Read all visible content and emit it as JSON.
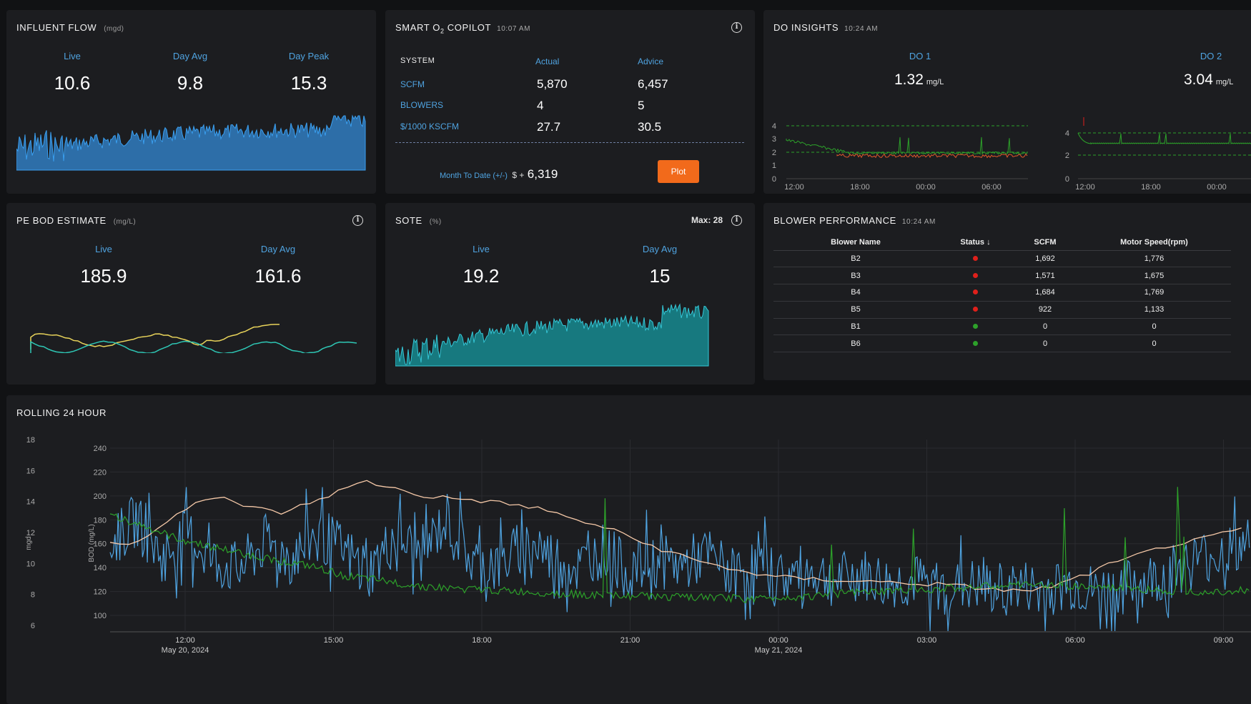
{
  "influent": {
    "title": "INFLUENT FLOW",
    "unit": "(mgd)",
    "live_label": "Live",
    "live": "10.6",
    "avg_label": "Day Avg",
    "avg": "9.8",
    "peak_label": "Day Peak",
    "peak": "15.3"
  },
  "copilot": {
    "title_pre": "SMART O",
    "title_sub": "2",
    "title_post": " COPILOT",
    "time": "10:07 AM",
    "col_system": "SYSTEM",
    "col_actual": "Actual",
    "col_advice": "Advice",
    "rows": [
      {
        "label": "SCFM",
        "actual": "5,870",
        "advice": "6,457"
      },
      {
        "label": "BLOWERS",
        "actual": "4",
        "advice": "5"
      },
      {
        "label": "$/1000 KSCFM",
        "actual": "27.7",
        "advice": "30.5"
      }
    ],
    "mtd_label": "Month To Date (+/-)",
    "mtd_prefix": "$ +",
    "mtd_value": "6,319",
    "plot_button": "Plot"
  },
  "do_insights": {
    "title": "DO INSIGHTS",
    "time": "10:24 AM",
    "do1": {
      "label": "DO 1",
      "value": "1.32",
      "unit": "mg/L",
      "yticks": [
        "4",
        "3",
        "2",
        "1",
        "0"
      ],
      "xticks": [
        "12:00",
        "18:00",
        "00:00",
        "06:00"
      ]
    },
    "do2": {
      "label": "DO 2",
      "value": "3.04",
      "unit": "mg/L",
      "yticks": [
        "4",
        "2",
        "0"
      ],
      "xticks": [
        "12:00",
        "18:00",
        "00:00"
      ]
    }
  },
  "bod": {
    "title": "PE BOD ESTIMATE",
    "unit": "(mg/L)",
    "live_label": "Live",
    "live": "185.9",
    "avg_label": "Day Avg",
    "avg": "161.6"
  },
  "sote": {
    "title": "SOTE",
    "unit": "(%)",
    "max_text": "Max: 28",
    "live_label": "Live",
    "live": "19.2",
    "avg_label": "Day Avg",
    "avg": "15"
  },
  "blower": {
    "title": "BLOWER PERFORMANCE",
    "time": "10:24 AM",
    "headers": [
      "Blower Name",
      "Status",
      "SCFM",
      "Motor Speed(rpm)"
    ],
    "rows": [
      {
        "name": "B2",
        "status": "red",
        "scfm": "1,692",
        "speed": "1,776"
      },
      {
        "name": "B3",
        "status": "red",
        "scfm": "1,571",
        "speed": "1,675"
      },
      {
        "name": "B4",
        "status": "red",
        "scfm": "1,684",
        "speed": "1,769"
      },
      {
        "name": "B5",
        "status": "red",
        "scfm": "922",
        "speed": "1,133"
      },
      {
        "name": "B1",
        "status": "green",
        "scfm": "0",
        "speed": "0"
      },
      {
        "name": "B6",
        "status": "green",
        "scfm": "0",
        "speed": "0"
      }
    ]
  },
  "colors": {
    "red": "#e0201b",
    "green": "#2da12a",
    "blue": "#4fa3e0",
    "orange": "#f26a1b"
  },
  "chart_data": {
    "type": "line",
    "title": "ROLLING 24 HOUR",
    "y1label": "mgd",
    "y1ticks": [
      "18",
      "16",
      "14",
      "12",
      "10",
      "8",
      "6"
    ],
    "y2label": "BOD (mg/L)",
    "y2ticks": [
      "240",
      "220",
      "200",
      "180",
      "160",
      "140",
      "120",
      "100"
    ],
    "xticks": [
      "12:00",
      "15:00",
      "18:00",
      "21:00",
      "00:00",
      "03:00",
      "06:00",
      "09:00"
    ],
    "xdates": [
      "May 20, 2024",
      "",
      "",
      "",
      "May 21, 2024",
      "",
      "",
      ""
    ],
    "series": [
      {
        "name": "Influent Flow",
        "axis": "mgd",
        "color": "#4fa3e0",
        "values": [
          11.2,
          12.8,
          10.4,
          11.9,
          10.1,
          9.6,
          11.4,
          10.2,
          12.1,
          10.8,
          9.5,
          11.7,
          10.6,
          12.9,
          10.1,
          9.8,
          11.3,
          10.5,
          9.7,
          10.9,
          9.4,
          10.2,
          9.8,
          10.6,
          9.3,
          9.9,
          9.1,
          9.5,
          8.9,
          9.2,
          8.7,
          8.8,
          8.4,
          8.6,
          8.2,
          8.5,
          8.3,
          8.6,
          8.1,
          8.4,
          8.8,
          9.6,
          10.3,
          10.8,
          11.2
        ]
      },
      {
        "name": "PE BOD",
        "axis": "bod",
        "color": "#f6c9a8",
        "values": [
          160,
          162,
          180,
          194,
          198,
          190,
          186,
          194,
          204,
          212,
          206,
          200,
          198,
          196,
          193,
          190,
          182,
          176,
          168,
          158,
          150,
          143,
          138,
          133,
          131,
          130,
          129,
          128,
          127,
          126,
          124,
          122,
          120,
          124,
          132,
          142,
          150,
          158,
          162,
          168,
          174
        ]
      },
      {
        "name": "SOTE",
        "axis": "mgd",
        "color": "#2da12a",
        "values": [
          13.2,
          12.4,
          11.6,
          11.1,
          10.6,
          10.2,
          9.8,
          9.2,
          8.9,
          8.6,
          8.4,
          8.3,
          8.2,
          8.1,
          8.0,
          7.9,
          7.9,
          7.8,
          7.8,
          7.7,
          7.8,
          7.9,
          8.1,
          8.2,
          8.3,
          8.4,
          8.5,
          8.6,
          8.6,
          8.5,
          8.4,
          8.3,
          8.2,
          8.2,
          8.3
        ]
      }
    ]
  }
}
